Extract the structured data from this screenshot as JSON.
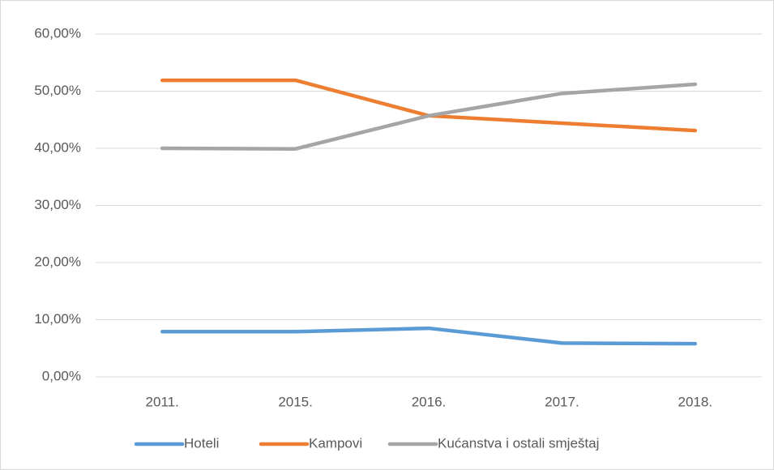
{
  "chart_data": {
    "type": "line",
    "categories": [
      "2011.",
      "2015.",
      "2016.",
      "2017.",
      "2018."
    ],
    "series": [
      {
        "name": "Hoteli",
        "color": "#5b9bd5",
        "values": [
          7.9,
          7.9,
          8.5,
          5.9,
          5.8
        ]
      },
      {
        "name": "Kampovi",
        "color": "#ed7d31",
        "values": [
          51.9,
          51.9,
          45.7,
          44.4,
          43.1
        ]
      },
      {
        "name": "Kućanstva i ostali smještaj",
        "color": "#a5a5a5",
        "values": [
          40.0,
          39.9,
          45.7,
          49.6,
          51.2
        ]
      }
    ],
    "ylim": [
      0,
      60
    ],
    "yticks": [
      {
        "value": 0,
        "label": "0,00%"
      },
      {
        "value": 10,
        "label": "10,00%"
      },
      {
        "value": 20,
        "label": "20,00%"
      },
      {
        "value": 30,
        "label": "30,00%"
      },
      {
        "value": 40,
        "label": "40,00%"
      },
      {
        "value": 50,
        "label": "50,00%"
      },
      {
        "value": 60,
        "label": "60,00%"
      }
    ],
    "grid": true,
    "legend": "bottom"
  }
}
